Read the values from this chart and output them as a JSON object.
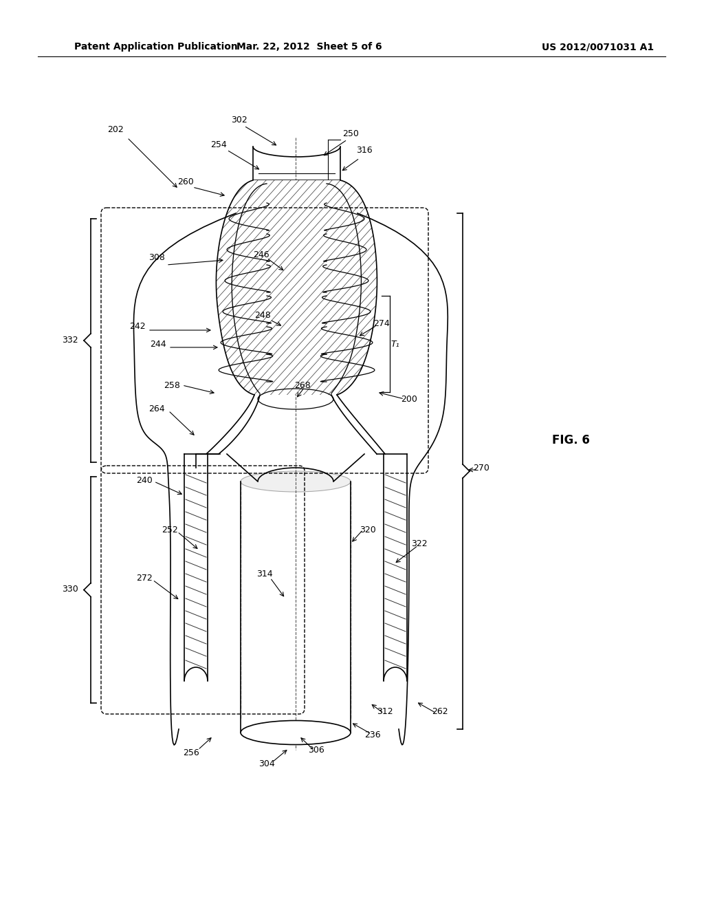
{
  "bg_color": "#ffffff",
  "line_color": "#000000",
  "header_left": "Patent Application Publication",
  "header_mid": "Mar. 22, 2012  Sheet 5 of 6",
  "header_right": "US 2012/0071031 A1",
  "fig_label": "FIG. 6"
}
